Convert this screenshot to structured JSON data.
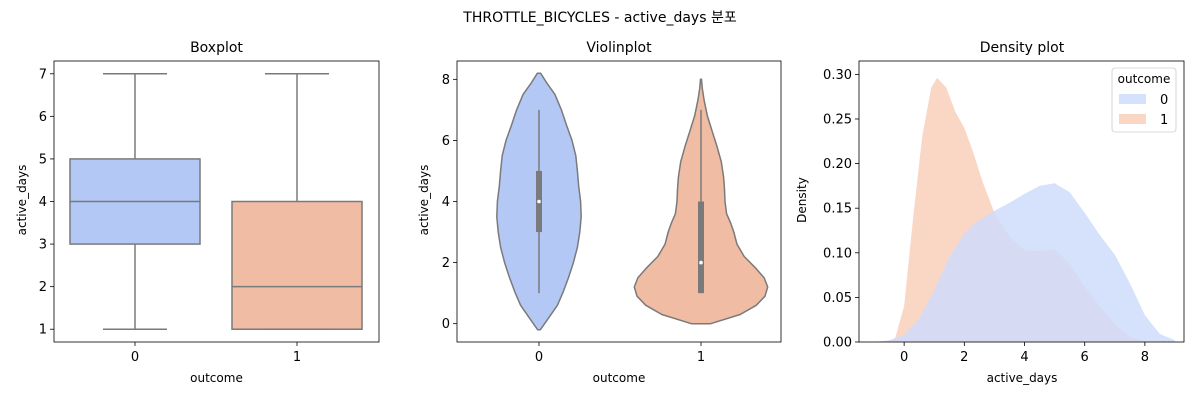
{
  "suptitle": "THROTTLE_BICYCLES - active_days 분포",
  "colors": {
    "outcome_0": "#b3c8f5",
    "outcome_1": "#f0bca3",
    "density_0": "#cfdcfa",
    "density_1": "#f9cfbb",
    "line": "#7a7a7a"
  },
  "chart_data": [
    {
      "type": "box",
      "title": "Boxplot",
      "xlabel": "outcome",
      "ylabel": "active_days",
      "categories": [
        "0",
        "1"
      ],
      "ylim": [
        0.7,
        7.3
      ],
      "yticks": [
        1,
        2,
        3,
        4,
        5,
        6,
        7
      ],
      "boxes": [
        {
          "category": "0",
          "min": 1,
          "q1": 3,
          "median": 4,
          "q3": 5,
          "max": 7
        },
        {
          "category": "1",
          "min": 1,
          "q1": 1,
          "median": 2,
          "q3": 4,
          "max": 7
        }
      ]
    },
    {
      "type": "violin",
      "title": "Violinplot",
      "xlabel": "outcome",
      "ylabel": "active_days",
      "categories": [
        "0",
        "1"
      ],
      "ylim": [
        -0.6,
        8.6
      ],
      "yticks": [
        0,
        2,
        4,
        6,
        8
      ],
      "violins": [
        {
          "category": "0",
          "q1": 3,
          "median": 4,
          "q3": 5,
          "whisker_low": 1,
          "whisker_high": 7,
          "profile": [
            [
              -0.2,
              0.008
            ],
            [
              0.2,
              0.062
            ],
            [
              0.6,
              0.115
            ],
            [
              1.0,
              0.148
            ],
            [
              1.5,
              0.184
            ],
            [
              2.0,
              0.215
            ],
            [
              2.5,
              0.24
            ],
            [
              3.0,
              0.255
            ],
            [
              3.5,
              0.264
            ],
            [
              4.0,
              0.26
            ],
            [
              4.5,
              0.248
            ],
            [
              5.0,
              0.24
            ],
            [
              5.5,
              0.23
            ],
            [
              6.0,
              0.206
            ],
            [
              6.5,
              0.172
            ],
            [
              7.0,
              0.14
            ],
            [
              7.5,
              0.1
            ],
            [
              7.9,
              0.046
            ],
            [
              8.2,
              0.01
            ]
          ]
        },
        {
          "category": "1",
          "q1": 1,
          "median": 2,
          "q3": 4,
          "whisker_low": 1,
          "whisker_high": 7,
          "profile": [
            [
              0.0,
              0.06
            ],
            [
              0.3,
              0.245
            ],
            [
              0.6,
              0.345
            ],
            [
              0.9,
              0.4
            ],
            [
              1.2,
              0.417
            ],
            [
              1.5,
              0.395
            ],
            [
              1.8,
              0.345
            ],
            [
              2.2,
              0.27
            ],
            [
              2.6,
              0.225
            ],
            [
              3.0,
              0.205
            ],
            [
              3.3,
              0.185
            ],
            [
              3.6,
              0.16
            ],
            [
              4.0,
              0.15
            ],
            [
              4.4,
              0.147
            ],
            [
              4.8,
              0.141
            ],
            [
              5.3,
              0.127
            ],
            [
              5.8,
              0.1
            ],
            [
              6.3,
              0.07
            ],
            [
              6.8,
              0.04
            ],
            [
              7.3,
              0.02
            ],
            [
              7.7,
              0.008
            ],
            [
              8.0,
              0.003
            ]
          ]
        }
      ]
    },
    {
      "type": "area",
      "title": "Density plot",
      "xlabel": "active_days",
      "ylabel": "Density",
      "xlim": [
        -1.5,
        9.3
      ],
      "ylim": [
        0,
        0.315
      ],
      "xticks": [
        0,
        2,
        4,
        6,
        8
      ],
      "yticks": [
        0.0,
        0.05,
        0.1,
        0.15,
        0.2,
        0.25,
        0.3
      ],
      "legend": {
        "title": "outcome",
        "position": "top-right",
        "entries": [
          "0",
          "1"
        ]
      },
      "series": [
        {
          "name": "0",
          "x": [
            -1.0,
            -0.5,
            0.0,
            0.5,
            1.0,
            1.5,
            2.0,
            2.5,
            3.0,
            3.5,
            4.0,
            4.5,
            5.0,
            5.5,
            6.0,
            6.5,
            7.0,
            7.5,
            8.0,
            8.5,
            9.0
          ],
          "y": [
            0.0,
            0.002,
            0.008,
            0.026,
            0.058,
            0.095,
            0.122,
            0.137,
            0.147,
            0.156,
            0.166,
            0.175,
            0.178,
            0.168,
            0.145,
            0.12,
            0.098,
            0.066,
            0.03,
            0.009,
            0.002
          ]
        },
        {
          "name": "1",
          "x": [
            -0.6,
            -0.3,
            0.0,
            0.3,
            0.6,
            0.9,
            1.1,
            1.4,
            1.7,
            2.0,
            2.3,
            2.6,
            3.0,
            3.5,
            4.0,
            4.5,
            5.0,
            5.5,
            6.0,
            6.5,
            7.0,
            7.5,
            8.0,
            8.5
          ],
          "y": [
            0.0,
            0.004,
            0.04,
            0.14,
            0.23,
            0.285,
            0.296,
            0.285,
            0.258,
            0.24,
            0.212,
            0.18,
            0.145,
            0.118,
            0.103,
            0.102,
            0.104,
            0.088,
            0.062,
            0.04,
            0.02,
            0.006,
            0.001,
            0.0
          ]
        }
      ]
    }
  ]
}
